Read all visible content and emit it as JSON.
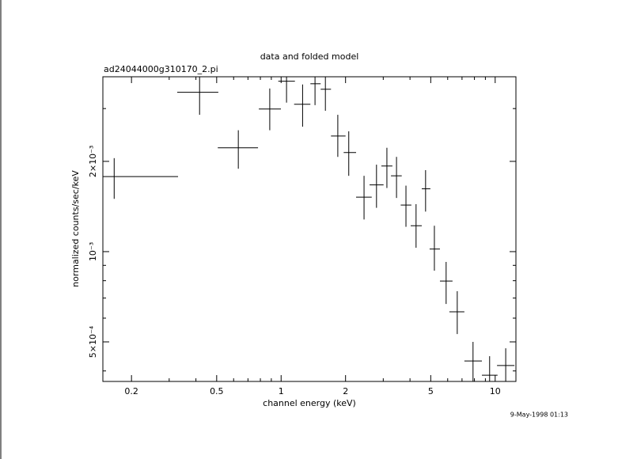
{
  "chart_data": {
    "type": "errorbar",
    "title": "data and folded model",
    "subtitle": "ad24044000g310170_2.pi",
    "xlabel": "channel energy (keV)",
    "ylabel": "normalized counts/sec/keV",
    "timestamp": "9-May-1998 01:13",
    "xscale": "log",
    "yscale": "log",
    "color": "#000000",
    "xlim": [
      0.147,
      12.5
    ],
    "ylim": [
      0.000369,
      0.00383
    ],
    "xticks": [
      0.2,
      0.5,
      1,
      2,
      5,
      10
    ],
    "xminorticks": [
      0.3,
      0.4,
      0.6,
      0.7,
      0.8,
      0.9,
      3,
      4,
      6,
      7,
      8,
      9
    ],
    "yticks": [
      {
        "value": 0.0005,
        "label": "5×10⁻⁴"
      },
      {
        "value": 0.001,
        "label": "10⁻³"
      },
      {
        "value": 0.002,
        "label": "2×10⁻³"
      }
    ],
    "yminorticks": [
      0.0004,
      0.0006,
      0.0007,
      0.0008,
      0.0009,
      0.003
    ],
    "x": [
      0.166,
      0.416,
      0.631,
      0.885,
      1.06,
      1.26,
      1.44,
      1.61,
      1.84,
      2.07,
      2.44,
      2.79,
      3.12,
      3.46,
      3.83,
      4.27,
      4.73,
      5.2,
      5.9,
      6.65,
      7.88,
      9.42,
      11.2
    ],
    "x_low": [
      0.147,
      0.327,
      0.506,
      0.787,
      0.97,
      1.15,
      1.37,
      1.53,
      1.71,
      1.96,
      2.24,
      2.59,
      2.94,
      3.26,
      3.62,
      4.03,
      4.54,
      4.94,
      5.52,
      6.11,
      7.18,
      8.67,
      10.2
    ],
    "x_high": [
      0.33,
      0.509,
      0.78,
      0.998,
      1.16,
      1.37,
      1.53,
      1.71,
      2.0,
      2.24,
      2.65,
      3.01,
      3.31,
      3.66,
      4.06,
      4.54,
      4.98,
      5.52,
      6.32,
      7.18,
      8.67,
      10.26,
      12.3
    ],
    "values": [
      0.00178,
      0.0034,
      0.00222,
      0.00299,
      0.0037,
      0.0031,
      0.00363,
      0.00348,
      0.00243,
      0.00214,
      0.00152,
      0.00167,
      0.00193,
      0.00179,
      0.00143,
      0.00122,
      0.00162,
      0.00102,
      0.000798,
      0.00063,
      0.000432,
      0.000387,
      0.000417
    ],
    "y_low": [
      0.0015,
      0.00286,
      0.00189,
      0.00254,
      0.00314,
      0.00261,
      0.00308,
      0.00295,
      0.00207,
      0.00179,
      0.00128,
      0.0014,
      0.00163,
      0.00151,
      0.00121,
      0.00103,
      0.00136,
      0.000864,
      0.000669,
      0.000531,
      0.00035,
      0.00035,
      0.00035
    ],
    "y_high": [
      0.00205,
      0.004,
      0.00254,
      0.0035,
      0.0042,
      0.00361,
      0.0041,
      0.004,
      0.00286,
      0.00252,
      0.00179,
      0.00195,
      0.00222,
      0.00207,
      0.00166,
      0.00144,
      0.00187,
      0.00122,
      0.000924,
      0.000738,
      0.0005,
      0.000448,
      0.000476
    ]
  }
}
